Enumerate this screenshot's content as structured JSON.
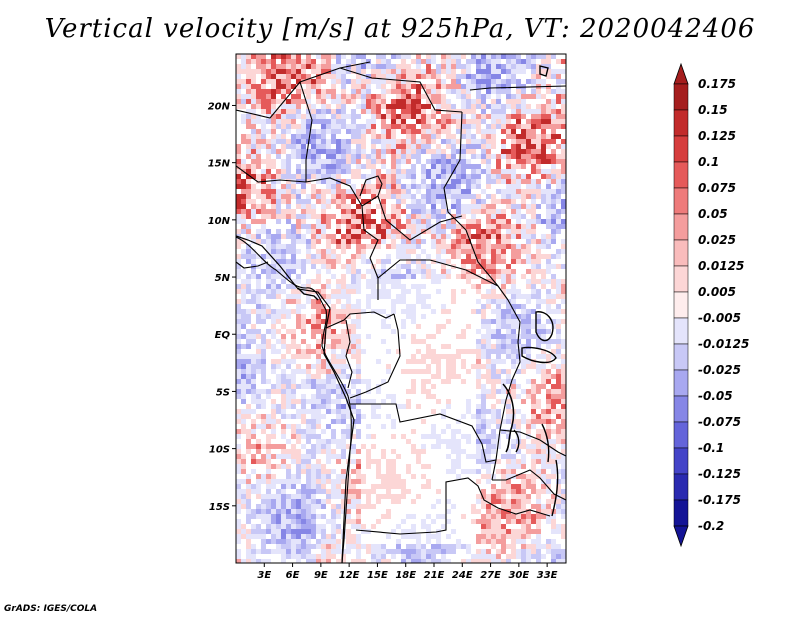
{
  "title": "Vertical velocity [m/s] at 925hPa, VT: 2020042406",
  "credit": "GrADS: IGES/COLA",
  "map": {
    "lat_range": [
      -20,
      24.5
    ],
    "lon_range": [
      0,
      35
    ],
    "lat_ticks": [
      {
        "value": 20,
        "label": "20N"
      },
      {
        "value": 15,
        "label": "15N"
      },
      {
        "value": 10,
        "label": "10N"
      },
      {
        "value": 5,
        "label": "5N"
      },
      {
        "value": 0,
        "label": "EQ"
      },
      {
        "value": -5,
        "label": "5S"
      },
      {
        "value": -10,
        "label": "10S"
      },
      {
        "value": -15,
        "label": "15S"
      }
    ],
    "lon_ticks": [
      {
        "value": 3,
        "label": "3E"
      },
      {
        "value": 6,
        "label": "6E"
      },
      {
        "value": 9,
        "label": "9E"
      },
      {
        "value": 12,
        "label": "12E"
      },
      {
        "value": 15,
        "label": "15E"
      },
      {
        "value": 18,
        "label": "18E"
      },
      {
        "value": 21,
        "label": "21E"
      },
      {
        "value": 24,
        "label": "24E"
      },
      {
        "value": 27,
        "label": "27E"
      },
      {
        "value": 30,
        "label": "30E"
      },
      {
        "value": 33,
        "label": "33E"
      }
    ]
  },
  "colorbar": {
    "levels": [
      {
        "label": "0.175",
        "color": "#a51e1e"
      },
      {
        "label": "0.15",
        "color": "#c22b2b"
      },
      {
        "label": "0.125",
        "color": "#d63d3d"
      },
      {
        "label": "0.1",
        "color": "#e55a5a"
      },
      {
        "label": "0.075",
        "color": "#ee7b7b"
      },
      {
        "label": "0.05",
        "color": "#f49d9d"
      },
      {
        "label": "0.025",
        "color": "#f9bcbc"
      },
      {
        "label": "0.0125",
        "color": "#fcd6d6"
      },
      {
        "label": "0.005",
        "color": "#feeded"
      },
      {
        "label": "-0.005",
        "color": "#ffffff"
      },
      {
        "label": "-0.0125",
        "color": "#e4e4fb"
      },
      {
        "label": "-0.025",
        "color": "#c8c8f6"
      },
      {
        "label": "-0.05",
        "color": "#a8a8f0"
      },
      {
        "label": "-0.075",
        "color": "#8686e6"
      },
      {
        "label": "-0.1",
        "color": "#6464da"
      },
      {
        "label": "-0.125",
        "color": "#4444c8"
      },
      {
        "label": "-0.175",
        "color": "#2a2ab0"
      },
      {
        "label": "-0.2",
        "color": "#141496"
      }
    ],
    "top_color": "#a51e1e",
    "bottom_color": "#141496"
  },
  "field_colors": {
    "strong_red": "#c22b2b",
    "red": "#e55a5a",
    "light_red": "#f49d9d",
    "pale_red": "#fcd6d6",
    "white": "#ffffff",
    "pale_blue": "#e4e4fb",
    "light_blue": "#c8c8f6",
    "blue": "#a8a8f0",
    "strong_blue": "#8686e6"
  }
}
